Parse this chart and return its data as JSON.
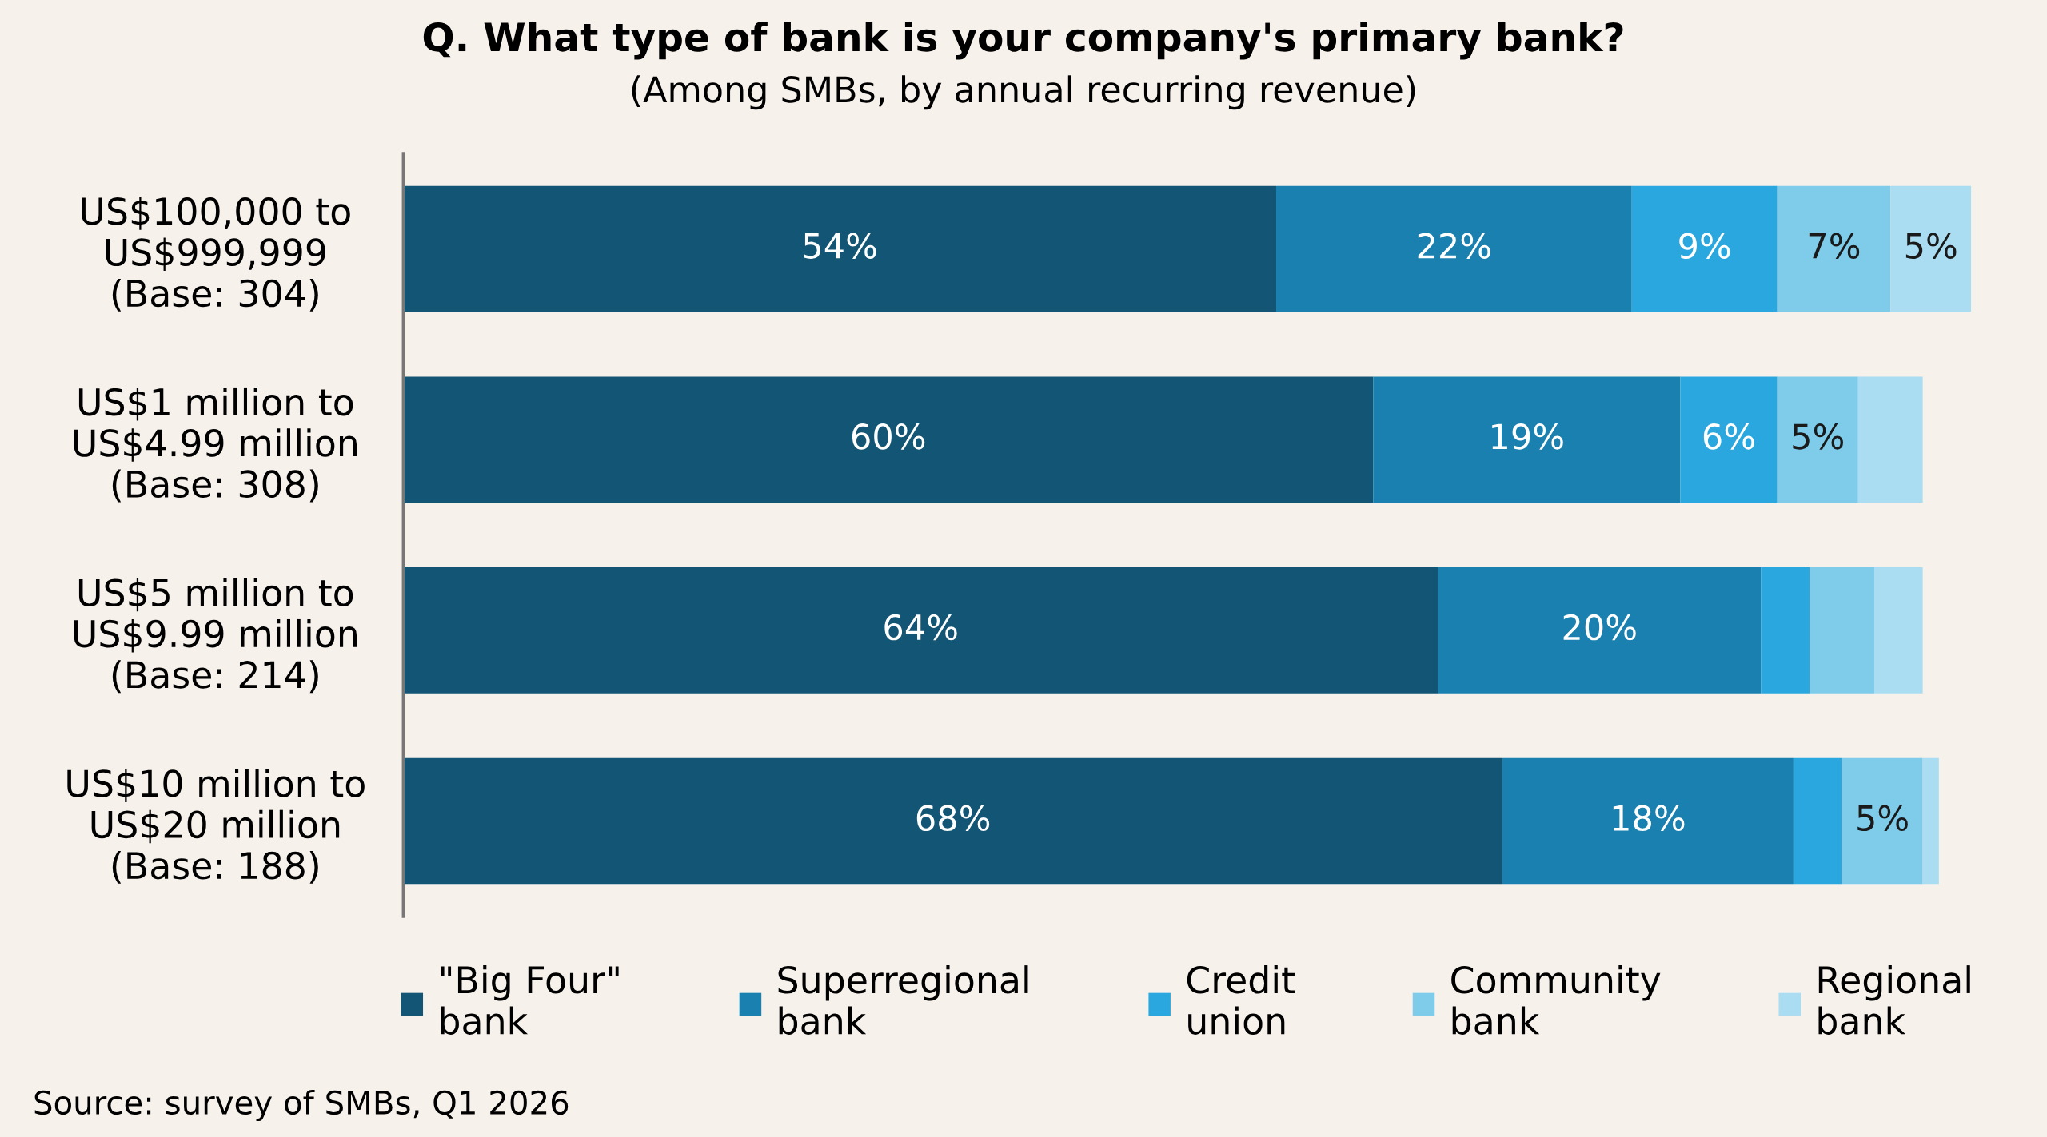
{
  "chart_data": {
    "type": "bar",
    "orientation": "horizontal",
    "stacked": true,
    "title": "Q. What type of bank is your company's primary bank?",
    "subtitle": "(Among SMBs, by annual recurring revenue)",
    "categories": [
      "US$100,000 to\nUS$999,999\n(Base: 304)",
      "US$1 million to\nUS$4.99 million\n(Base: 308)",
      "US$5 million to\nUS$9.99 million\n(Base: 214)",
      "US$10 million to\nUS$20 million\n(Base: 188)"
    ],
    "series": [
      {
        "name": "\"Big Four\"\nbank",
        "color": "#135574",
        "values": [
          54,
          60,
          64,
          68
        ],
        "value_labels": [
          "54%",
          "60%",
          "64%",
          "68%"
        ]
      },
      {
        "name": "Superregional\nbank",
        "color": "#1a80b0",
        "values": [
          22,
          19,
          20,
          18
        ],
        "value_labels": [
          "22%",
          "19%",
          "20%",
          "18%"
        ]
      },
      {
        "name": "Credit\nunion",
        "color": "#2aa7df",
        "values": [
          9,
          6,
          3,
          3
        ],
        "value_labels": [
          "9%",
          "6%",
          null,
          null
        ]
      },
      {
        "name": "Community\nbank",
        "color": "#7ecbea",
        "values": [
          7,
          5,
          4,
          5
        ],
        "value_labels": [
          "7%",
          "5%",
          null,
          "5%"
        ]
      },
      {
        "name": "Regional\nbank",
        "color": "#aadcf2",
        "values": [
          5,
          4,
          3,
          1
        ],
        "value_labels": [
          "5%",
          null,
          null,
          null
        ]
      }
    ],
    "legend": "bottom",
    "grid": false,
    "tick_labels": "y",
    "annotations": [
      "Source: survey of SMBs, Q1 2026"
    ]
  }
}
